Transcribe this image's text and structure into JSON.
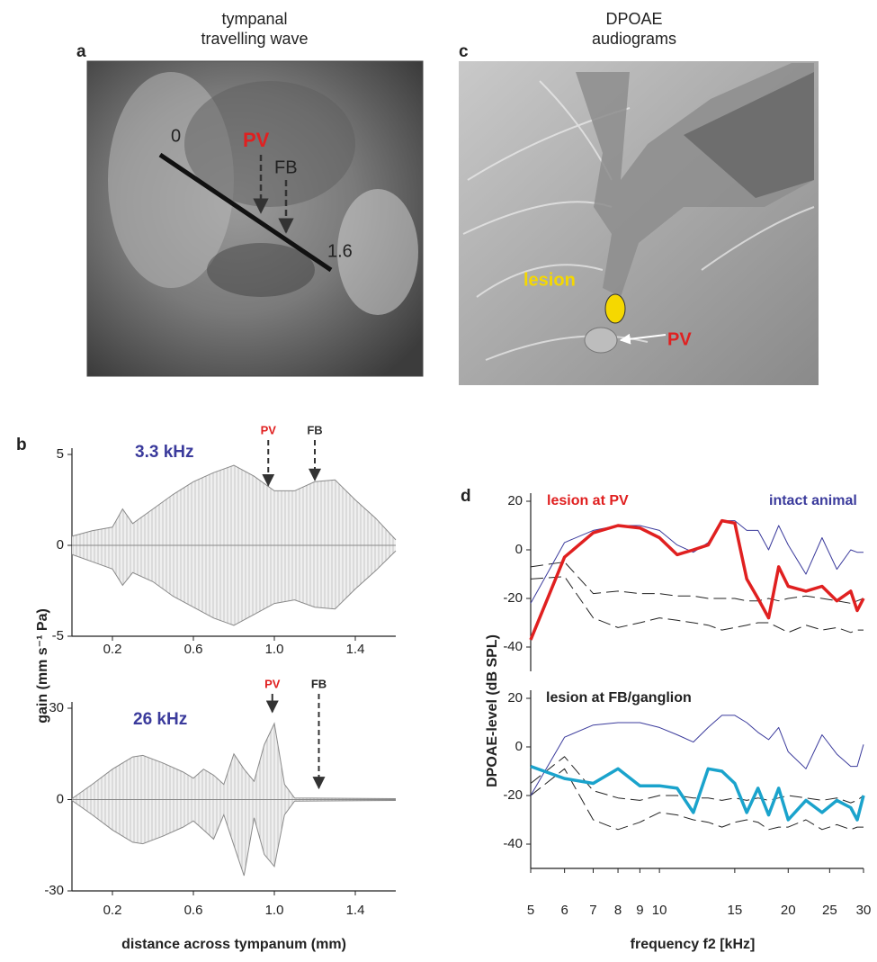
{
  "panels": {
    "a": {
      "letter": "a",
      "title_lines": [
        "tympanal",
        "travelling wave"
      ],
      "marks": [
        "0",
        "PV",
        "FB",
        "1.6"
      ]
    },
    "b": {
      "letter": "b"
    },
    "c": {
      "letter": "c",
      "title_lines": [
        "DPOAE",
        "audiograms"
      ],
      "marks": [
        "lesion",
        "PV"
      ]
    },
    "d": {
      "letter": "d"
    }
  },
  "axis_titles": {
    "gain": "gain (mm s⁻¹ Pa)",
    "distance": "distance across tympanum (mm)",
    "level": "DPOAE-level  (dB SPL)",
    "frequency": "frequency f2 [kHz]"
  },
  "chart_data": [
    {
      "type": "area",
      "label": "3.3 kHz",
      "label_color": "#3b3b9c",
      "x": [
        0,
        0.1,
        0.2,
        0.25,
        0.3,
        0.4,
        0.5,
        0.6,
        0.7,
        0.8,
        0.9,
        1.0,
        1.1,
        1.2,
        1.3,
        1.4,
        1.5,
        1.6
      ],
      "series": [
        {
          "color": "#8a8a8a",
          "values": [
            0.5,
            0.8,
            1.0,
            2.0,
            1.2,
            2.0,
            2.8,
            3.5,
            4.0,
            4.4,
            3.8,
            3.0,
            3.0,
            3.5,
            3.6,
            2.5,
            1.5,
            0.3
          ]
        },
        {
          "color": "#8a8a8a",
          "values": [
            -0.5,
            -0.9,
            -1.3,
            -2.2,
            -1.5,
            -2.0,
            -2.8,
            -3.4,
            -4.0,
            -4.4,
            -3.8,
            -3.2,
            -3.0,
            -3.4,
            -3.5,
            -2.4,
            -1.4,
            -0.3
          ]
        }
      ],
      "annotations": [
        {
          "text": "PV",
          "x": 0.97,
          "y": 3.0,
          "color": "#e02020",
          "dashed": true
        },
        {
          "text": "FB",
          "x": 1.2,
          "y": 3.3,
          "color": "#333333",
          "dashed": true
        }
      ],
      "xlim": [
        0,
        1.6
      ],
      "ylim": [
        -5,
        5
      ],
      "yticks": [
        -5,
        0,
        5
      ],
      "xticks": [
        0.2,
        0.6,
        {
          "value": 1,
          "label": "1.0"
        },
        1.4
      ]
    },
    {
      "type": "area",
      "label": "26 kHz",
      "label_color": "#3b3b9c",
      "x": [
        0,
        0.1,
        0.2,
        0.3,
        0.35,
        0.45,
        0.55,
        0.6,
        0.65,
        0.7,
        0.75,
        0.8,
        0.85,
        0.9,
        0.95,
        1.0,
        1.05,
        1.1,
        1.6
      ],
      "series": [
        {
          "color": "#8a8a8a",
          "values": [
            0.3,
            5,
            10,
            14,
            14.5,
            12,
            9,
            7,
            10,
            8,
            5,
            15,
            10,
            6,
            18,
            25,
            5,
            0.5,
            0.3
          ]
        },
        {
          "color": "#8a8a8a",
          "values": [
            -0.3,
            -5,
            -10,
            -14,
            -14.5,
            -12,
            -9,
            -7,
            -10,
            -13,
            -5,
            -15,
            -25,
            -6,
            -18,
            -22,
            -5,
            -0.5,
            -0.3
          ]
        }
      ],
      "annotations": [
        {
          "text": "PV",
          "x": 0.99,
          "y": 27,
          "color": "#e02020",
          "dashed": false
        },
        {
          "text": "FB",
          "x": 1.22,
          "y": 2,
          "color": "#222222",
          "dashed": true
        }
      ],
      "xlim": [
        0,
        1.6
      ],
      "ylim": [
        -30,
        30
      ],
      "yticks": [
        -30,
        0,
        30
      ],
      "xticks": [
        0.2,
        0.6,
        {
          "value": 1,
          "label": "1.0"
        },
        1.4
      ]
    },
    {
      "type": "line",
      "log_x": true,
      "x": [
        5,
        6,
        7,
        8,
        9,
        10,
        11,
        12,
        13,
        14,
        15,
        16,
        17,
        18,
        19,
        20,
        22,
        24,
        26,
        28,
        29,
        30
      ],
      "series": [
        {
          "color": "#222222",
          "dash": true,
          "line_width": 1,
          "values": [
            -7,
            -5,
            -18,
            -17,
            -18,
            -18,
            -19,
            -19,
            -20,
            -20,
            -20,
            -21,
            -21,
            -20,
            -21,
            -20,
            -19,
            -20,
            -21,
            -22,
            -21,
            -20
          ]
        },
        {
          "color": "#222222",
          "dash": true,
          "line_width": 1,
          "values": [
            -12,
            -11,
            -28,
            -32,
            -30,
            -28,
            -29,
            -30,
            -31,
            -33,
            -32,
            -31,
            -30,
            -30,
            -32,
            -34,
            -31,
            -33,
            -32,
            -34,
            -33,
            -33
          ]
        },
        {
          "name": "intact animal",
          "color": "#3b3b9c",
          "line_width": 1,
          "values": [
            -22,
            3,
            8,
            10,
            10,
            8,
            2,
            -1,
            3,
            12,
            12,
            8,
            8,
            0,
            10,
            2,
            -10,
            5,
            -8,
            0,
            -1,
            -1
          ]
        },
        {
          "name": "lesion at PV",
          "color": "#e02020",
          "line_width": 3.5,
          "values": [
            -37,
            -3,
            7,
            10,
            9,
            5,
            -2,
            0,
            2,
            12,
            11,
            -12,
            -20,
            -28,
            -7,
            -15,
            -17,
            -15,
            -21,
            -17,
            -25,
            -20
          ]
        }
      ],
      "xlim": [
        5,
        30
      ],
      "ylim": [
        -50,
        20
      ],
      "yticks": [
        -40,
        -20,
        0,
        20
      ]
    },
    {
      "type": "line",
      "log_x": true,
      "title": "lesion at FB/ganglion",
      "x": [
        5,
        6,
        7,
        8,
        9,
        10,
        11,
        12,
        13,
        14,
        15,
        16,
        17,
        18,
        19,
        20,
        22,
        24,
        26,
        28,
        29,
        30
      ],
      "series": [
        {
          "color": "#222222",
          "dash": true,
          "line_width": 1,
          "values": [
            -15,
            -4,
            -18,
            -21,
            -22,
            -20,
            -20,
            -21,
            -21,
            -22,
            -21,
            -22,
            -21,
            -22,
            -21,
            -20,
            -21,
            -22,
            -21,
            -23,
            -22,
            -20
          ]
        },
        {
          "color": "#222222",
          "dash": true,
          "line_width": 1,
          "values": [
            -20,
            -9,
            -30,
            -34,
            -31,
            -27,
            -28,
            -30,
            -31,
            -33,
            -31,
            -30,
            -31,
            -34,
            -33,
            -33,
            -30,
            -34,
            -32,
            -34,
            -33,
            -33
          ]
        },
        {
          "color": "#3b3b9c",
          "line_width": 1,
          "values": [
            -20,
            4,
            9,
            10,
            10,
            8,
            5,
            2,
            8,
            13,
            13,
            10,
            6,
            3,
            8,
            -2,
            -9,
            5,
            -3,
            -8,
            -8,
            1
          ]
        },
        {
          "color": "#1aa3cc",
          "line_width": 3.5,
          "values": [
            -8,
            -13,
            -15,
            -9,
            -16,
            -16,
            -17,
            -27,
            -9,
            -10,
            -15,
            -27,
            -17,
            -28,
            -17,
            -30,
            -22,
            -27,
            -22,
            -25,
            -30,
            -20
          ]
        }
      ],
      "xlim": [
        5,
        30
      ],
      "ylim": [
        -50,
        20
      ],
      "yticks": [
        -40,
        -20,
        0,
        20
      ],
      "xticks": [
        5,
        6,
        7,
        8,
        9,
        10,
        15,
        20,
        25,
        30
      ]
    }
  ]
}
